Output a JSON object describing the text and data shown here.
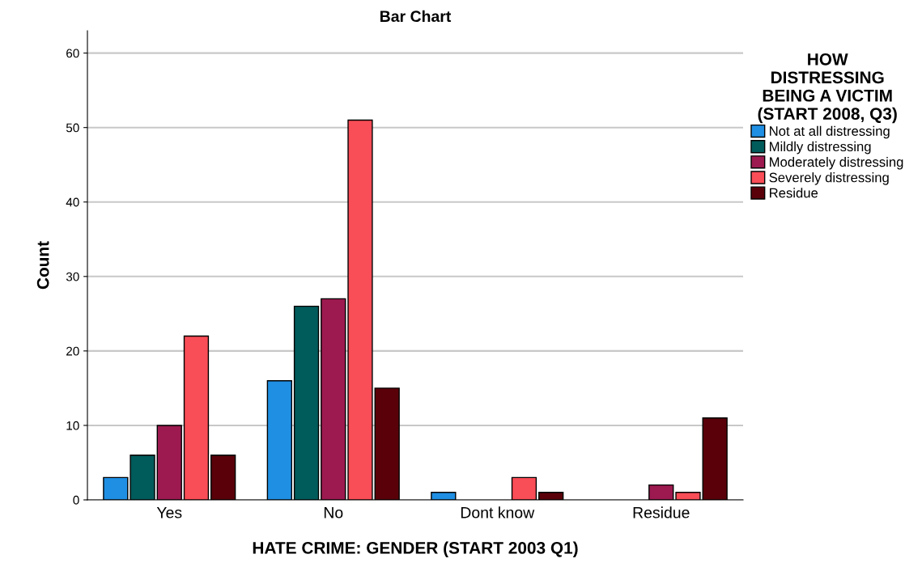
{
  "chart_data": {
    "type": "bar",
    "title": "Bar Chart",
    "xlabel": "HATE CRIME: GENDER (START 2003 Q1)",
    "ylabel": "Count",
    "legend_title": "HOW\nDISTRESSING\nBEING A VICTIM\n(START 2008, Q3)",
    "categories": [
      "Yes",
      "No",
      "Dont know",
      "Residue"
    ],
    "series": [
      {
        "name": "Not at all distressing",
        "color": "#1f8fe3",
        "values": [
          3,
          16,
          1,
          0
        ]
      },
      {
        "name": "Mildly distressing",
        "color": "#005b5b",
        "values": [
          6,
          26,
          0,
          0
        ]
      },
      {
        "name": "Moderately distressing",
        "color": "#9c1a4f",
        "values": [
          10,
          27,
          0,
          2
        ]
      },
      {
        "name": "Severely distressing",
        "color": "#f94d57",
        "values": [
          22,
          51,
          3,
          1
        ]
      },
      {
        "name": "Residue",
        "color": "#5a0009",
        "values": [
          6,
          15,
          1,
          11
        ]
      }
    ],
    "ylim": [
      0,
      63
    ],
    "yticks": [
      0,
      10,
      20,
      30,
      40,
      50,
      60
    ],
    "grid": "y",
    "legend": "top right"
  }
}
